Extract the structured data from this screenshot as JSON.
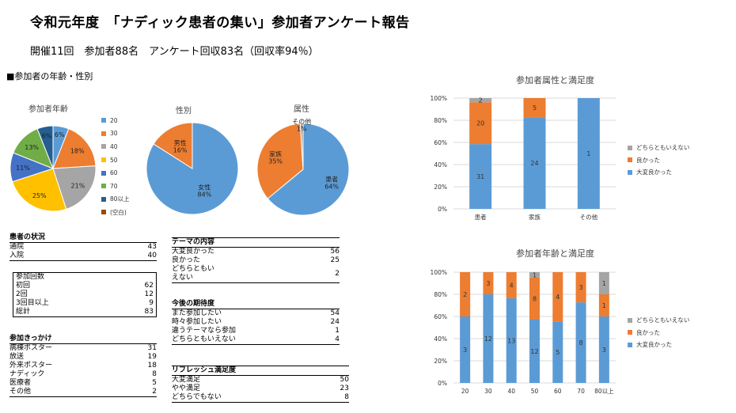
{
  "header": {
    "title": "令和元年度　「ナディック患者の集い」参加者アンケート報告",
    "subtitle": "開催11回　参加者88名　アンケート回収83名（回収率94％）",
    "section": "■参加者の年齢・性別"
  },
  "colors": {
    "blue": "#5B9BD5",
    "orange": "#ED7D31",
    "gray": "#A5A5A5",
    "yellow": "#FFC000",
    "darkblue": "#4472C4",
    "green": "#70AD47",
    "navy": "#255E91",
    "brown": "#9E480E"
  },
  "chart_data": [
    {
      "type": "pie",
      "title": "参加者年齢",
      "labels": [
        "20",
        "30",
        "40",
        "50",
        "60",
        "70",
        "80以上",
        "(空白)"
      ],
      "values": [
        6,
        18,
        21,
        25,
        11,
        13,
        6,
        0
      ],
      "data_labels": [
        "6%",
        "18%",
        "21%",
        "25%",
        "11%",
        "13%",
        "6%",
        ""
      ]
    },
    {
      "type": "pie",
      "title": "性別",
      "labels": [
        "女性",
        "男性"
      ],
      "values": [
        84,
        16
      ],
      "data_labels": [
        "女性\n84%",
        "男性\n16%"
      ]
    },
    {
      "type": "pie",
      "title": "属性",
      "labels": [
        "患者",
        "家族",
        "その他"
      ],
      "values": [
        64,
        35,
        1
      ],
      "data_labels": [
        "患者\n64%",
        "家族\n35%",
        "その他\n1%"
      ]
    },
    {
      "type": "bar",
      "stacked": "percent",
      "title": "参加者属性と満足度",
      "categories": [
        "患者",
        "家族",
        "その他"
      ],
      "series": [
        {
          "name": "大変良かった",
          "values": [
            31,
            24,
            1
          ]
        },
        {
          "name": "良かった",
          "values": [
            20,
            5,
            0
          ]
        },
        {
          "name": "どちらともいえない",
          "values": [
            2,
            0,
            0
          ]
        }
      ],
      "yticks": [
        "0%",
        "20%",
        "40%",
        "60%",
        "80%",
        "100%"
      ],
      "legend": "right"
    },
    {
      "type": "bar",
      "stacked": "percent",
      "title": "参加者年齢と満足度",
      "categories": [
        "20",
        "30",
        "40",
        "50",
        "60",
        "70",
        "80以上"
      ],
      "series": [
        {
          "name": "大変良かった",
          "values": [
            3,
            12,
            13,
            12,
            5,
            8,
            3
          ]
        },
        {
          "name": "良かった",
          "values": [
            2,
            3,
            4,
            8,
            4,
            3,
            1
          ]
        },
        {
          "name": "どちらともいえない",
          "values": [
            0,
            0,
            0,
            1,
            0,
            0,
            1
          ]
        }
      ],
      "yticks": [
        "0%",
        "20%",
        "40%",
        "60%",
        "80%",
        "100%"
      ],
      "legend": "right"
    }
  ],
  "tables": {
    "status": {
      "title": "患者の状況",
      "rows": [
        [
          "通院",
          "43"
        ],
        [
          "入院",
          "40"
        ]
      ]
    },
    "visits": {
      "title": "参加回数",
      "rows": [
        [
          "初回",
          "62"
        ],
        [
          "2回",
          "12"
        ],
        [
          "3回目以上",
          "9"
        ],
        [
          "総計",
          "83"
        ]
      ]
    },
    "trigger": {
      "title": "参加きっかけ",
      "rows": [
        [
          "病棟ポスター",
          "31"
        ],
        [
          "放送",
          "19"
        ],
        [
          "外来ポスター",
          "18"
        ],
        [
          "ナディック",
          "8"
        ],
        [
          "医療者",
          "5"
        ],
        [
          "その他",
          "2"
        ]
      ]
    },
    "theme": {
      "title": "テーマの内容",
      "rows": [
        [
          "大変良かった",
          "56"
        ],
        [
          "良かった",
          "25"
        ],
        [
          "どちらともい\nえない",
          "2"
        ]
      ]
    },
    "expect": {
      "title": "今後の期待度",
      "rows": [
        [
          "また参加したい",
          "54"
        ],
        [
          "時々参加したい",
          "24"
        ],
        [
          "違うテーマなら参加",
          "1"
        ],
        [
          "どちらともいえない",
          "4"
        ]
      ]
    },
    "refresh": {
      "title": "リフレッシュ満足度",
      "rows": [
        [
          "大変満足",
          "50"
        ],
        [
          "やや満足",
          "23"
        ],
        [
          "どちらでもない",
          "8"
        ]
      ]
    }
  }
}
